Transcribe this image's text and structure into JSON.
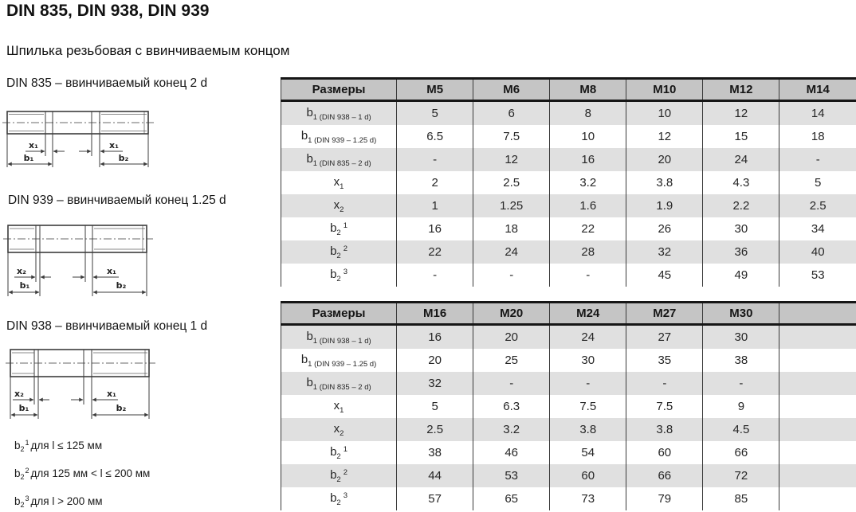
{
  "title": "DIN 835, DIN 938, DIN 939",
  "subtitle": "Шпилька резьбовая с ввинчиваемым концом",
  "drawings": [
    {
      "caption": "DIN 835 – ввинчиваемый конец 2 d",
      "dim_left": "x₁",
      "dim_right": "x₁",
      "dim_b1": "b₁",
      "dim_b2": "b₂"
    },
    {
      "caption": "DIN 939 – ввинчиваемый конец 1.25 d",
      "dim_left": "x₂",
      "dim_right": "x₁",
      "dim_b1": "b₁",
      "dim_b2": "b₂"
    },
    {
      "caption": "DIN 938 – ввинчиваемый конец 1 d",
      "dim_left": "x₂",
      "dim_right": "x₁",
      "dim_b1": "b₁",
      "dim_b2": "b₂"
    }
  ],
  "notes": [
    {
      "base": "b",
      "sub": "2",
      "sup": "1",
      "text": "для l ≤ 125 мм"
    },
    {
      "base": "b",
      "sub": "2",
      "sup": "2",
      "text": "для 125 мм < l ≤ 200 мм"
    },
    {
      "base": "b",
      "sub": "2",
      "sup": "3",
      "text": "для l > 200 мм"
    }
  ],
  "tables": [
    {
      "header": [
        "Размеры",
        "M5",
        "M6",
        "M8",
        "M10",
        "M12",
        "M14"
      ],
      "rows": [
        {
          "label": {
            "base": "b",
            "sub": "1 (DIN 938 – 1 d)",
            "sup": ""
          },
          "values": [
            "5",
            "6",
            "8",
            "10",
            "12",
            "14"
          ]
        },
        {
          "label": {
            "base": "b",
            "sub": "1 (DIN 939 – 1.25 d)",
            "sup": ""
          },
          "values": [
            "6.5",
            "7.5",
            "10",
            "12",
            "15",
            "18"
          ]
        },
        {
          "label": {
            "base": "b",
            "sub": "1 (DIN 835 – 2 d)",
            "sup": ""
          },
          "values": [
            "-",
            "12",
            "16",
            "20",
            "24",
            "-"
          ]
        },
        {
          "label": {
            "base": "x",
            "sub": "1",
            "sup": ""
          },
          "values": [
            "2",
            "2.5",
            "3.2",
            "3.8",
            "4.3",
            "5"
          ]
        },
        {
          "label": {
            "base": "x",
            "sub": "2",
            "sup": ""
          },
          "values": [
            "1",
            "1.25",
            "1.6",
            "1.9",
            "2.2",
            "2.5"
          ]
        },
        {
          "label": {
            "base": "b",
            "sub": "2",
            "sup": "1"
          },
          "values": [
            "16",
            "18",
            "22",
            "26",
            "30",
            "34"
          ]
        },
        {
          "label": {
            "base": "b",
            "sub": "2",
            "sup": "2"
          },
          "values": [
            "22",
            "24",
            "28",
            "32",
            "36",
            "40"
          ]
        },
        {
          "label": {
            "base": "b",
            "sub": "2",
            "sup": "3"
          },
          "values": [
            "-",
            "-",
            "-",
            "45",
            "49",
            "53"
          ]
        }
      ]
    },
    {
      "header": [
        "Размеры",
        "M16",
        "M20",
        "M24",
        "M27",
        "M30",
        ""
      ],
      "rows": [
        {
          "label": {
            "base": "b",
            "sub": "1 (DIN 938 – 1 d)",
            "sup": ""
          },
          "values": [
            "16",
            "20",
            "24",
            "27",
            "30",
            ""
          ]
        },
        {
          "label": {
            "base": "b",
            "sub": "1 (DIN 939 – 1.25 d)",
            "sup": ""
          },
          "values": [
            "20",
            "25",
            "30",
            "35",
            "38",
            ""
          ]
        },
        {
          "label": {
            "base": "b",
            "sub": "1 (DIN 835 – 2 d)",
            "sup": ""
          },
          "values": [
            "32",
            "-",
            "-",
            "-",
            "-",
            ""
          ]
        },
        {
          "label": {
            "base": "x",
            "sub": "1",
            "sup": ""
          },
          "values": [
            "5",
            "6.3",
            "7.5",
            "7.5",
            "9",
            ""
          ]
        },
        {
          "label": {
            "base": "x",
            "sub": "2",
            "sup": ""
          },
          "values": [
            "2.5",
            "3.2",
            "3.8",
            "3.8",
            "4.5",
            ""
          ]
        },
        {
          "label": {
            "base": "b",
            "sub": "2",
            "sup": "1"
          },
          "values": [
            "38",
            "46",
            "54",
            "60",
            "66",
            ""
          ]
        },
        {
          "label": {
            "base": "b",
            "sub": "2",
            "sup": "2"
          },
          "values": [
            "44",
            "53",
            "60",
            "66",
            "72",
            ""
          ]
        },
        {
          "label": {
            "base": "b",
            "sub": "2",
            "sup": "3"
          },
          "values": [
            "57",
            "65",
            "73",
            "79",
            "85",
            ""
          ]
        }
      ]
    }
  ],
  "colors": {
    "header_bg": "#c5c5c5",
    "row_alt_bg": "#e0e0e0",
    "table_border": "#3a3a3a",
    "heavy_border": "#161616",
    "text": "#1a1a1a"
  }
}
